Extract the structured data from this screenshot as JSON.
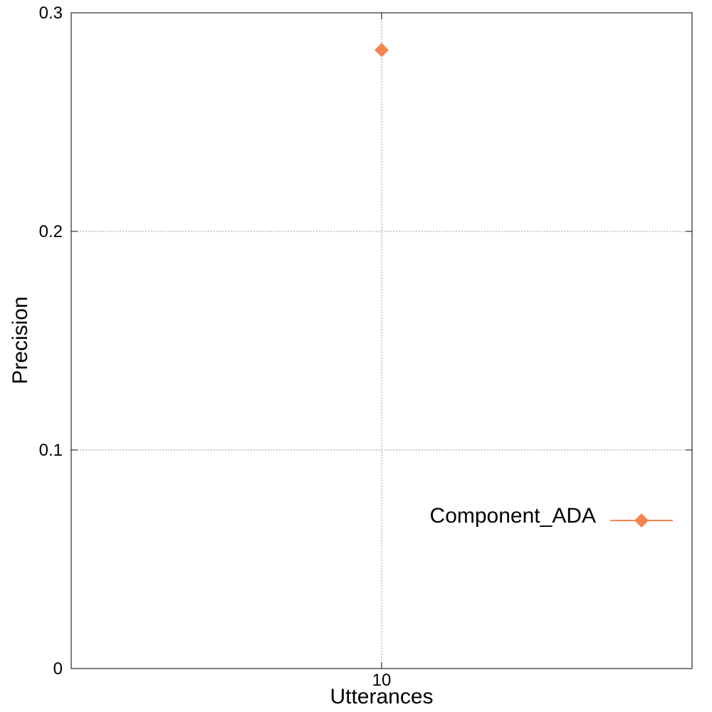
{
  "chart_data": {
    "type": "scatter",
    "xlabel": "Utterances",
    "ylabel": "Precision",
    "x_ticks": [
      10
    ],
    "x_tick_labels": [
      "10"
    ],
    "y_ticks": [
      0,
      0.1,
      0.2,
      0.3
    ],
    "y_tick_labels": [
      "0",
      "0.1",
      "0.2",
      "0.3"
    ],
    "ylim": [
      0,
      0.3
    ],
    "grid": true,
    "legend_position": "lower-right",
    "series": [
      {
        "name": "Component_ADA",
        "color": "#f4844f",
        "marker": "diamond",
        "points": [
          {
            "x": 10,
            "y": 0.283
          }
        ]
      }
    ]
  }
}
